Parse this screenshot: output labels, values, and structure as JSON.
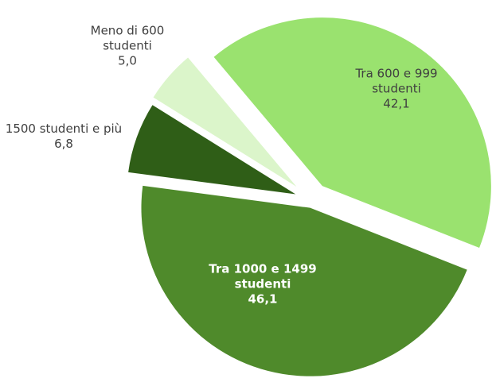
{
  "chart_data": {
    "type": "pie",
    "categories": [
      "Tra 600 e 999 studenti",
      "Tra 1000 e 1499 studenti",
      "1500 studenti e più",
      "Meno di 600 studenti"
    ],
    "values": [
      42.1,
      46.1,
      6.8,
      5.0
    ],
    "value_labels": [
      "42,1",
      "46,1",
      "6,8",
      "5,0"
    ],
    "colors": [
      "#9ae26f",
      "#4f8a2b",
      "#2f5e17",
      "#dbf5ca"
    ]
  }
}
